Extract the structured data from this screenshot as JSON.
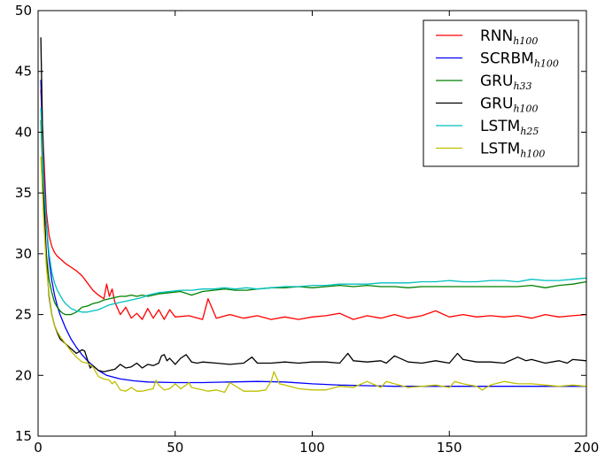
{
  "chart_data": {
    "type": "line",
    "xlim": [
      0,
      200
    ],
    "ylim": [
      15,
      50
    ],
    "xticks": [
      0,
      50,
      100,
      150,
      200
    ],
    "yticks": [
      15,
      20,
      25,
      30,
      35,
      40,
      45,
      50
    ],
    "grid": false,
    "legend_position": "top-right",
    "series": [
      {
        "name": "RNN",
        "subscript": "h100",
        "color": "#ff0000",
        "x": [
          1,
          2,
          3,
          4,
          5,
          6,
          7,
          8,
          9,
          10,
          12,
          14,
          16,
          18,
          20,
          22,
          24,
          25,
          26,
          27,
          28,
          29,
          30,
          32,
          34,
          36,
          38,
          40,
          42,
          44,
          46,
          48,
          50,
          55,
          60,
          62,
          65,
          70,
          75,
          80,
          85,
          90,
          95,
          100,
          105,
          110,
          115,
          120,
          125,
          130,
          135,
          140,
          145,
          150,
          155,
          160,
          165,
          170,
          175,
          180,
          185,
          190,
          195,
          200
        ],
        "y": [
          43.5,
          38.5,
          33.5,
          31.5,
          30.6,
          30.1,
          29.8,
          29.6,
          29.4,
          29.2,
          28.9,
          28.6,
          28.2,
          27.6,
          27.0,
          26.6,
          26.3,
          27.5,
          26.5,
          27.1,
          26.0,
          25.5,
          25.0,
          25.6,
          24.7,
          25.1,
          24.6,
          25.5,
          24.7,
          25.4,
          24.6,
          25.4,
          24.8,
          24.9,
          24.6,
          26.3,
          24.7,
          25.0,
          24.7,
          24.9,
          24.6,
          24.8,
          24.6,
          24.8,
          24.9,
          25.1,
          24.6,
          24.9,
          24.7,
          25.0,
          24.7,
          24.9,
          25.3,
          24.8,
          25.0,
          24.8,
          24.9,
          24.8,
          24.9,
          24.7,
          25.0,
          24.8,
          24.9,
          25.0
        ]
      },
      {
        "name": "SCRBM",
        "subscript": "h100",
        "color": "#0000ff",
        "x": [
          1,
          2,
          3,
          4,
          5,
          6,
          7,
          8,
          10,
          12,
          14,
          16,
          18,
          20,
          22,
          25,
          30,
          35,
          40,
          50,
          60,
          70,
          80,
          90,
          100,
          110,
          120,
          130,
          140,
          150,
          160,
          170,
          180,
          190,
          200
        ],
        "y": [
          44.3,
          37.0,
          32.5,
          29.5,
          27.8,
          26.6,
          25.7,
          25.0,
          23.9,
          23.0,
          22.3,
          21.7,
          21.2,
          20.8,
          20.4,
          20.0,
          19.7,
          19.55,
          19.45,
          19.4,
          19.4,
          19.45,
          19.5,
          19.45,
          19.3,
          19.2,
          19.15,
          19.1,
          19.1,
          19.1,
          19.1,
          19.1,
          19.1,
          19.1,
          19.1
        ]
      },
      {
        "name": "GRU",
        "subscript": "h33",
        "color": "#008000",
        "x": [
          1,
          2,
          3,
          4,
          5,
          6,
          7,
          8,
          9,
          10,
          11,
          12,
          13,
          14,
          15,
          16,
          18,
          20,
          22,
          24,
          26,
          28,
          30,
          32,
          34,
          36,
          38,
          40,
          44,
          48,
          52,
          56,
          60,
          64,
          68,
          72,
          76,
          80,
          85,
          90,
          95,
          100,
          105,
          110,
          115,
          120,
          125,
          130,
          135,
          140,
          145,
          150,
          155,
          160,
          165,
          170,
          175,
          180,
          185,
          190,
          195,
          200
        ],
        "y": [
          41.0,
          34.5,
          30.0,
          27.9,
          26.8,
          26.0,
          25.6,
          25.3,
          25.1,
          25.0,
          25.0,
          25.0,
          25.1,
          25.2,
          25.4,
          25.6,
          25.7,
          25.9,
          26.0,
          26.2,
          26.3,
          26.4,
          26.5,
          26.5,
          26.6,
          26.5,
          26.6,
          26.5,
          26.7,
          26.8,
          26.9,
          26.6,
          26.9,
          27.0,
          27.1,
          27.0,
          27.0,
          27.1,
          27.2,
          27.2,
          27.3,
          27.2,
          27.3,
          27.4,
          27.3,
          27.4,
          27.3,
          27.3,
          27.2,
          27.3,
          27.3,
          27.3,
          27.3,
          27.3,
          27.3,
          27.3,
          27.3,
          27.4,
          27.2,
          27.4,
          27.5,
          27.7
        ]
      },
      {
        "name": "GRU",
        "subscript": "h100",
        "color": "#000000",
        "x": [
          1,
          2,
          3,
          4,
          5,
          6,
          7,
          8,
          9,
          10,
          12,
          14,
          16,
          17,
          18,
          19,
          20,
          22,
          24,
          26,
          28,
          30,
          32,
          34,
          36,
          38,
          40,
          42,
          44,
          45,
          46,
          47,
          48,
          50,
          52,
          54,
          56,
          58,
          60,
          65,
          70,
          75,
          78,
          80,
          85,
          90,
          95,
          100,
          105,
          110,
          113,
          115,
          120,
          125,
          127,
          130,
          135,
          140,
          145,
          150,
          153,
          155,
          160,
          165,
          170,
          175,
          178,
          180,
          185,
          190,
          193,
          195,
          200
        ],
        "y": [
          47.8,
          35.5,
          29.5,
          26.5,
          25.0,
          24.1,
          23.5,
          23.0,
          22.8,
          22.6,
          22.2,
          21.8,
          22.1,
          22.0,
          21.3,
          20.6,
          20.8,
          20.4,
          20.3,
          20.4,
          20.5,
          20.9,
          20.6,
          20.7,
          21.0,
          20.6,
          20.9,
          20.8,
          21.0,
          21.6,
          21.7,
          21.2,
          21.4,
          20.9,
          21.4,
          21.7,
          21.1,
          21.0,
          21.1,
          21.0,
          20.9,
          21.0,
          21.5,
          21.0,
          21.0,
          21.1,
          21.0,
          21.1,
          21.1,
          21.0,
          21.8,
          21.2,
          21.1,
          21.2,
          21.0,
          21.6,
          21.1,
          21.0,
          21.2,
          21.0,
          21.8,
          21.3,
          21.1,
          21.1,
          21.0,
          21.5,
          21.2,
          21.3,
          21.0,
          21.2,
          21.0,
          21.3,
          21.2
        ]
      },
      {
        "name": "LSTM",
        "subscript": "h25",
        "color": "#00bfbf",
        "x": [
          1,
          2,
          3,
          4,
          5,
          6,
          7,
          8,
          9,
          10,
          12,
          14,
          16,
          18,
          20,
          22,
          24,
          26,
          28,
          30,
          32,
          34,
          36,
          38,
          40,
          44,
          48,
          52,
          56,
          60,
          64,
          68,
          72,
          76,
          80,
          85,
          90,
          95,
          100,
          105,
          110,
          115,
          120,
          125,
          130,
          135,
          140,
          145,
          150,
          155,
          160,
          165,
          170,
          175,
          180,
          185,
          190,
          195,
          200
        ],
        "y": [
          42.0,
          36.0,
          32.5,
          30.0,
          28.5,
          27.6,
          27.0,
          26.6,
          26.2,
          25.9,
          25.5,
          25.3,
          25.2,
          25.2,
          25.3,
          25.4,
          25.6,
          25.8,
          25.9,
          26.0,
          26.1,
          26.2,
          26.3,
          26.4,
          26.6,
          26.8,
          26.9,
          27.0,
          27.0,
          27.1,
          27.1,
          27.2,
          27.1,
          27.2,
          27.1,
          27.2,
          27.3,
          27.3,
          27.4,
          27.4,
          27.5,
          27.5,
          27.5,
          27.6,
          27.6,
          27.6,
          27.7,
          27.7,
          27.8,
          27.7,
          27.7,
          27.8,
          27.8,
          27.7,
          27.9,
          27.8,
          27.8,
          27.9,
          28.0
        ]
      },
      {
        "name": "LSTM",
        "subscript": "h100",
        "color": "#bfbf00",
        "x": [
          1,
          2,
          3,
          4,
          5,
          6,
          7,
          8,
          10,
          12,
          14,
          16,
          18,
          20,
          22,
          24,
          26,
          27,
          28,
          30,
          32,
          34,
          36,
          38,
          40,
          42,
          43,
          44,
          46,
          48,
          50,
          52,
          54,
          55,
          56,
          58,
          60,
          62,
          65,
          68,
          70,
          75,
          80,
          83,
          85,
          86,
          88,
          90,
          95,
          100,
          105,
          110,
          115,
          120,
          125,
          127,
          130,
          135,
          140,
          145,
          150,
          152,
          155,
          160,
          162,
          165,
          170,
          175,
          180,
          185,
          190,
          195,
          200
        ],
        "y": [
          38.0,
          33.0,
          29.0,
          26.7,
          25.0,
          24.1,
          23.6,
          23.2,
          22.6,
          22.0,
          21.5,
          21.1,
          21.0,
          20.7,
          19.9,
          19.7,
          19.6,
          19.3,
          19.5,
          18.8,
          18.7,
          19.0,
          18.7,
          18.7,
          18.8,
          18.9,
          19.6,
          19.2,
          18.8,
          18.9,
          19.3,
          18.9,
          19.2,
          19.4,
          19.0,
          18.9,
          18.8,
          18.7,
          18.8,
          18.6,
          19.4,
          18.7,
          18.7,
          18.8,
          19.5,
          20.3,
          19.3,
          19.2,
          18.9,
          18.8,
          18.8,
          19.1,
          19.0,
          19.5,
          19.0,
          19.5,
          19.3,
          19.0,
          19.1,
          19.2,
          19.0,
          19.5,
          19.3,
          19.1,
          18.8,
          19.2,
          19.5,
          19.3,
          19.3,
          19.2,
          19.1,
          19.2,
          19.1
        ]
      }
    ]
  }
}
